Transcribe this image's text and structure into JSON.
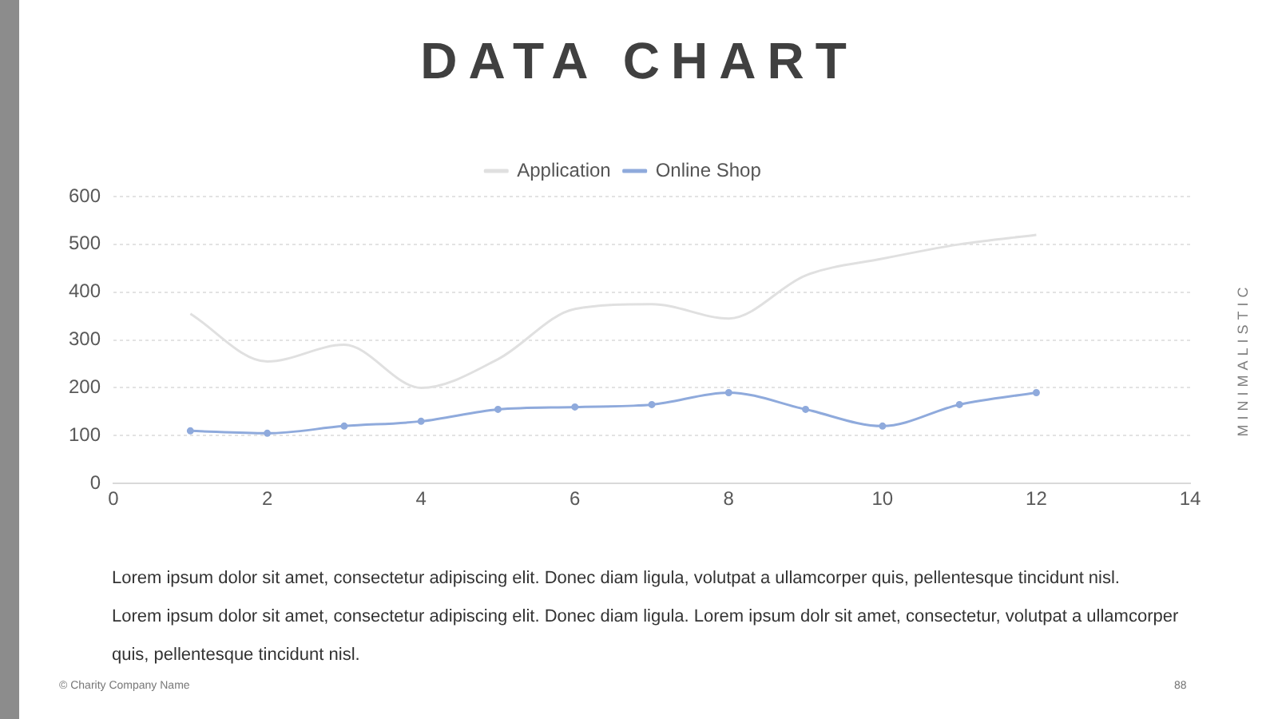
{
  "chart_data": {
    "type": "line",
    "title": "DATA CHART",
    "x": [
      1,
      2,
      3,
      4,
      5,
      6,
      7,
      8,
      9,
      10,
      11,
      12
    ],
    "series": [
      {
        "name": "Application",
        "color": "#e0e0e0",
        "marker": "none",
        "values": [
          355,
          255,
          290,
          200,
          260,
          365,
          375,
          345,
          435,
          470,
          500,
          520
        ]
      },
      {
        "name": "Online Shop",
        "color": "#8faadc",
        "marker": "circle",
        "values": [
          110,
          105,
          120,
          130,
          155,
          160,
          165,
          190,
          155,
          120,
          165,
          190
        ]
      }
    ],
    "xlim": [
      0,
      14
    ],
    "xticks": [
      0,
      2,
      4,
      6,
      8,
      10,
      12,
      14
    ],
    "ylim": [
      0,
      600
    ],
    "yticks": [
      0,
      100,
      200,
      300,
      400,
      500,
      600
    ],
    "grid": "y",
    "legend": "top",
    "annotations": [
      "MINIMALISTIC",
      "Lorem ipsum dolor sit amet, consectetur adipiscing elit. Donec diam ligula, volutpat a ullamcorper quis, pellentesque tincidunt nisl.",
      "Lorem ipsum dolor sit amet, consectetur adipiscing elit. Donec diam ligula. Lorem ipsum dolr sit amet, consectetur, volutpat a ullamcorper quis, pellentesque tincidunt nisl.",
      "© Charity Company Name",
      "88"
    ]
  }
}
